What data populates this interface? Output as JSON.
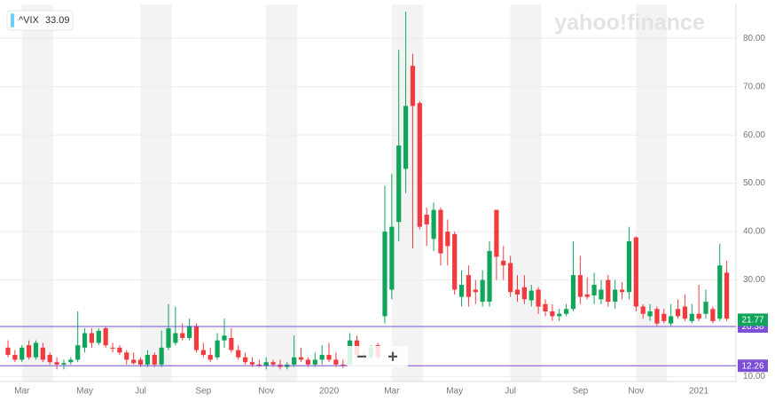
{
  "chart_data": {
    "type": "candlestick",
    "watermark": "yahoo!finance",
    "legend": {
      "name": "^VIX",
      "value": 33.09,
      "color": "#6ed0f6"
    },
    "zoom_controls": [
      "−",
      "+"
    ],
    "categories": [
      null,
      null,
      "Mar",
      null,
      null,
      null,
      null,
      null,
      null,
      null,
      null,
      "May",
      null,
      null,
      null,
      null,
      null,
      null,
      null,
      "Jul",
      null,
      null,
      null,
      null,
      null,
      null,
      null,
      null,
      "Sep",
      null,
      null,
      null,
      null,
      null,
      null,
      null,
      null,
      "Nov",
      null,
      null,
      null,
      null,
      null,
      null,
      null,
      null,
      "2020",
      null,
      null,
      null,
      null,
      null,
      null,
      null,
      null,
      "Mar",
      null,
      null,
      null,
      null,
      null,
      null,
      null,
      null,
      "May",
      null,
      null,
      null,
      null,
      null,
      null,
      null,
      "Jul",
      null,
      null,
      null,
      null,
      null,
      null,
      null,
      null,
      null,
      "Sep",
      null,
      null,
      null,
      null,
      null,
      null,
      null,
      "Nov",
      null,
      null,
      null,
      null,
      null,
      null,
      null,
      null,
      "2021",
      null,
      null,
      null,
      null
    ],
    "series": [
      {
        "name": "^VIX",
        "up_color": "#0fa55a",
        "down_color": "#f23a3f",
        "open": [
          16,
          14.5,
          13.5,
          16.5,
          14,
          16,
          14.5,
          13,
          12.5,
          13,
          13.5,
          16,
          19,
          17,
          20,
          16,
          16,
          15,
          13.5,
          13.5,
          12.5,
          14.5,
          12.5,
          16,
          17,
          19,
          18,
          20.5,
          15.5,
          14.5,
          14,
          17.5,
          18,
          15.5,
          14,
          13,
          12.5,
          12.2,
          13,
          12.5,
          12,
          12.5,
          14,
          13.5,
          12.5,
          13.5,
          14.5,
          13.5,
          12.5,
          12.5,
          17.5,
          14.5,
          14,
          16.5,
          22.5,
          28,
          42,
          53,
          74.3,
          66.6,
          43.5,
          38.5,
          44.5,
          40,
          39.5,
          26.5,
          31,
          28,
          25.5,
          25.5,
          44.5,
          34,
          33.5,
          28,
          28.5,
          25.8,
          28,
          25,
          23.5,
          22.5,
          23,
          24,
          31,
          27,
          26.8,
          26,
          30,
          25.5,
          28,
          27.5,
          38.8,
          24.5,
          22.5,
          24,
          23,
          21,
          24,
          24.5,
          21.5,
          23,
          23,
          24,
          22,
          31.5
        ],
        "high": [
          17.5,
          15.5,
          16.5,
          17.5,
          17.5,
          17,
          15,
          14,
          13.5,
          14,
          23.5,
          20,
          20,
          20,
          20.5,
          17,
          16.5,
          15.5,
          15,
          14,
          15.5,
          15,
          19.5,
          25,
          24.5,
          21,
          22,
          21,
          17,
          16,
          19,
          22,
          20,
          16.5,
          15,
          14,
          13.5,
          14,
          13.5,
          13.5,
          13,
          18.5,
          16,
          14,
          15,
          16.5,
          17,
          15,
          13.5,
          19,
          18.5,
          15.5,
          16.5,
          17,
          49.5,
          52,
          77.6,
          85.5,
          76.8,
          67,
          45,
          46,
          45,
          42.5,
          40,
          32,
          33,
          30,
          32,
          38,
          44.5,
          37,
          35,
          31,
          31,
          29,
          28.5,
          26,
          25,
          24,
          25,
          38,
          35,
          30.5,
          31.5,
          30,
          31,
          30,
          29.5,
          41,
          39,
          25,
          25,
          24.5,
          24,
          25,
          26,
          27,
          25,
          29,
          28,
          24.5,
          37.5,
          34
        ],
        "low": [
          14,
          13,
          13,
          13.5,
          13.5,
          13,
          12.5,
          11.5,
          11.5,
          12.5,
          13,
          15,
          16,
          16.5,
          16,
          15,
          14.5,
          12.5,
          12.5,
          12,
          12,
          12,
          12,
          15.5,
          16.5,
          17.5,
          17.5,
          15,
          14,
          13,
          13.5,
          16,
          15,
          13.5,
          12.5,
          12,
          12,
          11.5,
          12,
          11.5,
          11.5,
          12,
          13,
          12,
          12,
          12.5,
          13,
          12,
          11.8,
          12,
          14,
          13.5,
          13.5,
          13.5,
          21,
          26,
          38,
          48,
          36.5,
          40.5,
          37,
          36,
          33,
          33,
          27,
          24.5,
          24.5,
          25,
          24.5,
          24.5,
          30,
          30,
          26.5,
          25.5,
          25,
          24.5,
          23,
          22.5,
          21.5,
          21.5,
          22.5,
          23.5,
          25,
          26,
          25,
          25,
          24.5,
          24,
          26,
          26,
          23.5,
          22,
          21.5,
          20.5,
          21,
          20.5,
          22,
          21.5,
          21,
          21.5,
          22,
          21,
          21.5,
          21.5
        ],
        "close": [
          14.5,
          13.5,
          16,
          14,
          17,
          13.5,
          13,
          12.5,
          12.8,
          13.5,
          16.5,
          19,
          17,
          19.5,
          16.5,
          15.8,
          15,
          13.5,
          12.8,
          12.5,
          14.5,
          12.5,
          16,
          20,
          19,
          18,
          20.5,
          15.5,
          14.5,
          13.5,
          17.5,
          18.5,
          15.5,
          14,
          13,
          12.5,
          12.2,
          13,
          12.5,
          12,
          12.5,
          14,
          13.5,
          12.5,
          13.5,
          14.5,
          13.5,
          12.5,
          12.3,
          17.5,
          14.5,
          14,
          16,
          14,
          40,
          41,
          57.8,
          66,
          66,
          41,
          41.5,
          44.5,
          35.5,
          37,
          28,
          29,
          26.5,
          27.5,
          30,
          36,
          34.8,
          33,
          27.5,
          27,
          26,
          27.8,
          24.5,
          23.5,
          22.5,
          23,
          24,
          31,
          26.5,
          26.5,
          29,
          28,
          25.5,
          28,
          27.5,
          38,
          24.5,
          23,
          23.5,
          21,
          21.5,
          22.5,
          22.5,
          22,
          23,
          22,
          25.5,
          21.5,
          33,
          22
        ]
      }
    ],
    "levels": [
      20.38,
      12.26
    ],
    "level_color": "#7b4fd8",
    "last_price": 21.77,
    "last_price_color": "#0fa55a",
    "ylim": [
      9,
      87
    ],
    "yticks": [
      {
        "value": 10,
        "label": "10.00"
      },
      {
        "value": 20,
        "label": "20.00"
      },
      {
        "value": 30,
        "label": "30.00"
      },
      {
        "value": 40,
        "label": "40.00"
      },
      {
        "value": 50,
        "label": "50.00"
      },
      {
        "value": 60,
        "label": "60.00"
      },
      {
        "value": 70,
        "label": "70.00"
      },
      {
        "value": 80,
        "label": "80.00"
      }
    ],
    "grid": true
  }
}
